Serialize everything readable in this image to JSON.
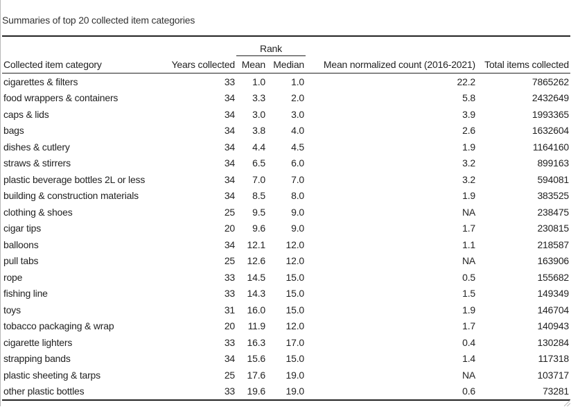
{
  "table": {
    "caption": "Summaries of top 20 collected item categories",
    "spanner_label": "Rank",
    "columns": [
      "Collected item category",
      "Years collected",
      "Mean",
      "Median",
      "Mean normalized count (2016-2021)",
      "Total items collected"
    ],
    "rows": [
      [
        "cigarettes & filters",
        "33",
        "1.0",
        "1.0",
        "22.2",
        "7865262"
      ],
      [
        "food wrappers & containers",
        "34",
        "3.3",
        "2.0",
        "5.8",
        "2432649"
      ],
      [
        "caps & lids",
        "34",
        "3.0",
        "3.0",
        "3.9",
        "1993365"
      ],
      [
        "bags",
        "34",
        "3.8",
        "4.0",
        "2.6",
        "1632604"
      ],
      [
        "dishes & cutlery",
        "34",
        "4.4",
        "4.5",
        "1.9",
        "1164160"
      ],
      [
        "straws & stirrers",
        "34",
        "6.5",
        "6.0",
        "3.2",
        "899163"
      ],
      [
        "plastic beverage bottles 2L or less",
        "34",
        "7.0",
        "7.0",
        "3.2",
        "594081"
      ],
      [
        "building & construction materials",
        "34",
        "8.5",
        "8.0",
        "1.9",
        "383525"
      ],
      [
        "clothing & shoes",
        "25",
        "9.5",
        "9.0",
        "NA",
        "238475"
      ],
      [
        "cigar tips",
        "20",
        "9.6",
        "9.0",
        "1.7",
        "230815"
      ],
      [
        "balloons",
        "34",
        "12.1",
        "12.0",
        "1.1",
        "218587"
      ],
      [
        "pull tabs",
        "25",
        "12.6",
        "12.0",
        "NA",
        "163906"
      ],
      [
        "rope",
        "33",
        "14.5",
        "15.0",
        "0.5",
        "155682"
      ],
      [
        "fishing line",
        "33",
        "14.3",
        "15.0",
        "1.5",
        "149349"
      ],
      [
        "toys",
        "31",
        "16.0",
        "15.0",
        "1.9",
        "146704"
      ],
      [
        "tobacco packaging & wrap",
        "20",
        "11.9",
        "12.0",
        "1.7",
        "140943"
      ],
      [
        "cigarette lighters",
        "33",
        "16.3",
        "17.0",
        "0.4",
        "130284"
      ],
      [
        "strapping bands",
        "34",
        "15.6",
        "15.0",
        "1.4",
        "117318"
      ],
      [
        "plastic sheeting & tarps",
        "25",
        "17.6",
        "19.0",
        "NA",
        "103717"
      ],
      [
        "other plastic bottles",
        "33",
        "19.6",
        "19.0",
        "0.6",
        "73281"
      ]
    ]
  }
}
